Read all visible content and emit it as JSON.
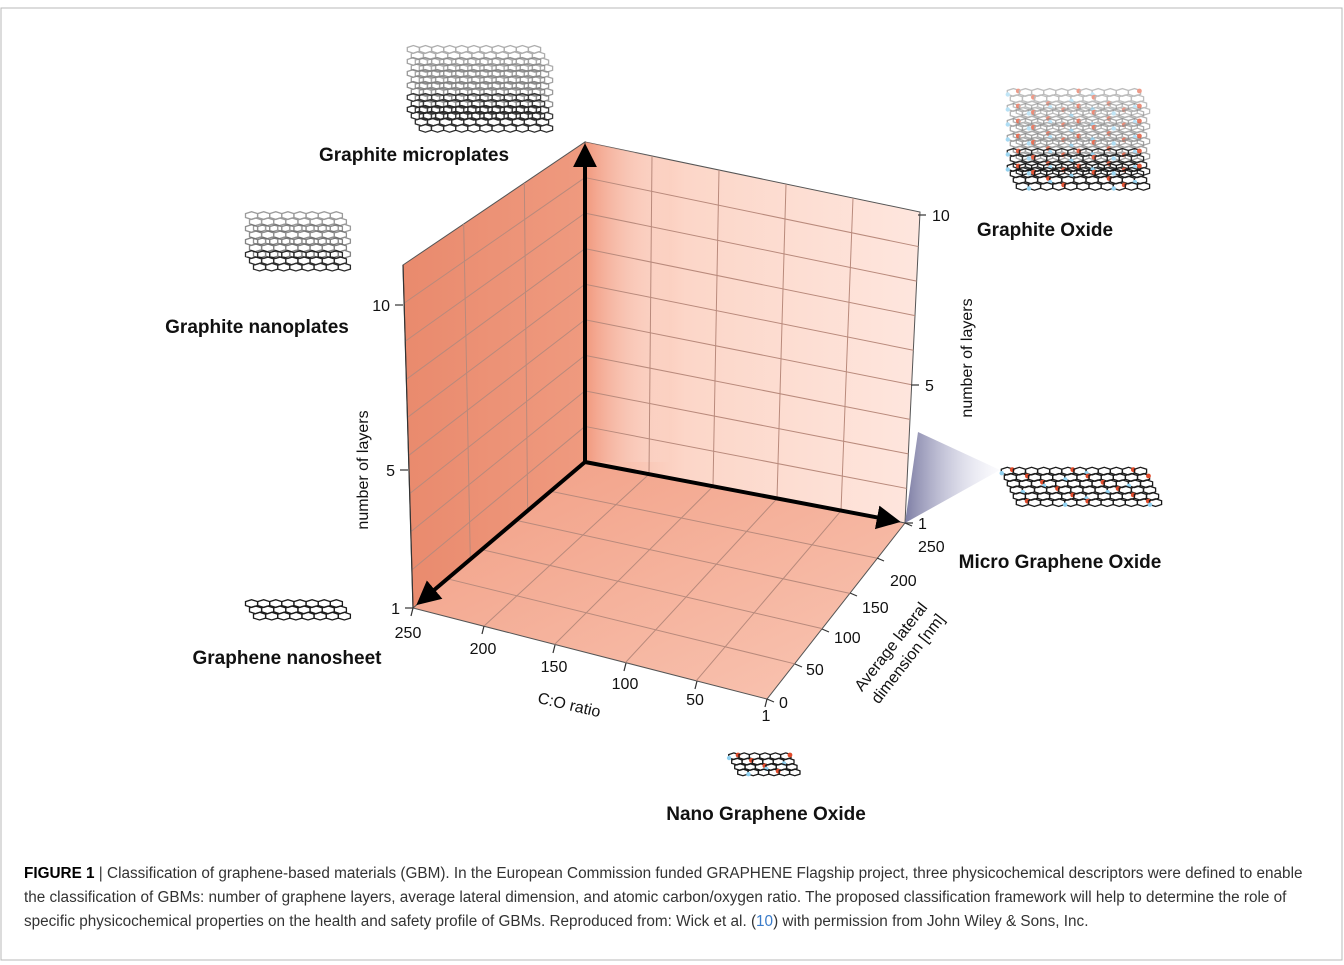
{
  "figure": {
    "materials": {
      "graphite_microplates": "Graphite microplates",
      "graphite_nanoplates": "Graphite nanoplates",
      "graphene_nanosheet": "Graphene nanosheet",
      "graphite_oxide": "Graphite Oxide",
      "micro_graphene_oxide": "Micro Graphene Oxide",
      "nano_graphene_oxide": "Nano Graphene Oxide"
    },
    "axes": {
      "layers_label_left": "number of layers",
      "layers_label_right": "number of layers",
      "co_ratio_label": "C:O ratio",
      "lateral_label_line1": "Average lateral",
      "lateral_label_line2": "dimension [nm]",
      "layers_ticks_left": [
        "10",
        "5",
        "1"
      ],
      "layers_ticks_right": [
        "10",
        "5",
        "1"
      ],
      "co_ticks": [
        "250",
        "200",
        "150",
        "100",
        "50",
        "1"
      ],
      "lateral_ticks": [
        "250",
        "200",
        "150",
        "100",
        "50",
        "0"
      ]
    },
    "colors": {
      "left_wall": "#ea8b70",
      "back_wall": "#fde0d6",
      "floor": "#f6b8a3",
      "grid": "#b98a7c",
      "carbon": "#1a1a1a",
      "oxygen": "#e04a2a",
      "hydrogen": "#8fd0f0"
    }
  },
  "caption": {
    "figure_number": "FIGURE 1",
    "separator": " | ",
    "text_before_ref": "Classification of graphene-based materials (GBM). In the European Commission funded GRAPHENE Flagship project, three physicochemical descriptors were defined to enable the classification of GBMs: number of graphene layers, average lateral dimension, and atomic carbon/oxygen ratio. The proposed classification framework will help to determine the role of specific physicochemical properties on the health and safety profile of GBMs. Reproduced from: Wick et al. (",
    "ref_number": "10",
    "text_after_ref": ") with permission from John Wiley & Sons, Inc."
  }
}
